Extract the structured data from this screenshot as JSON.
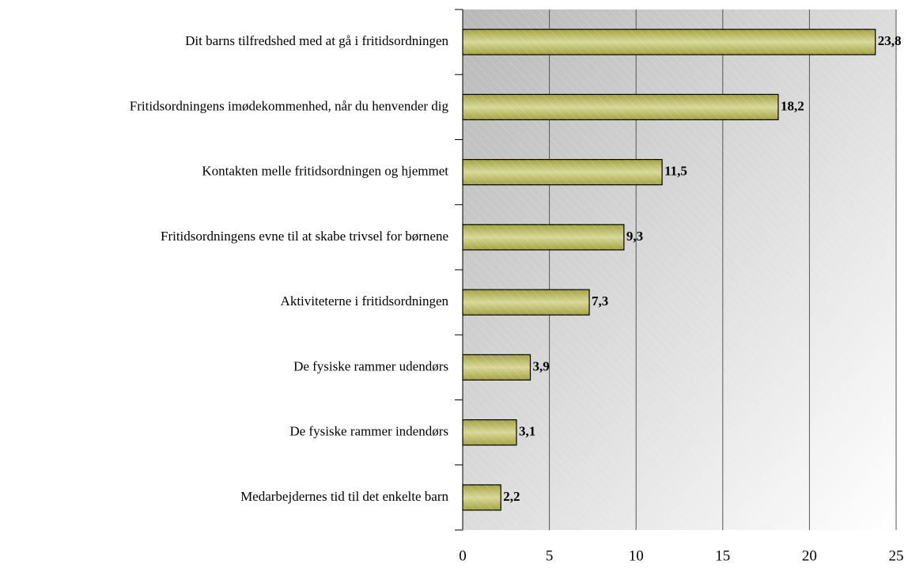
{
  "chart_data": {
    "type": "bar",
    "categories": [
      "Dit barns tilfredshed med at gå i fritidsordningen",
      "Fritidsordningens imødekommenhed, når du henvender dig",
      "Kontakten melle fritidsordningen og hjemmet",
      "Fritidsordningens evne til at skabe trivsel for børnene",
      "Aktiviteterne i fritidsordningen",
      "De fysiske rammer udendørs",
      "De fysiske rammer indendørs",
      "Medarbejdernes tid til det enkelte barn"
    ],
    "values": [
      23.8,
      18.2,
      11.5,
      9.3,
      7.3,
      3.9,
      3.1,
      2.2
    ],
    "value_labels": [
      "23,8",
      "18,2",
      "11,5",
      "9,3",
      "7,3",
      "3,9",
      "3,1",
      "2,2"
    ],
    "color": "#a3a341",
    "xlim": [
      0,
      25
    ],
    "xticks": [
      0,
      5,
      10,
      15,
      20,
      25
    ],
    "grid": true
  }
}
